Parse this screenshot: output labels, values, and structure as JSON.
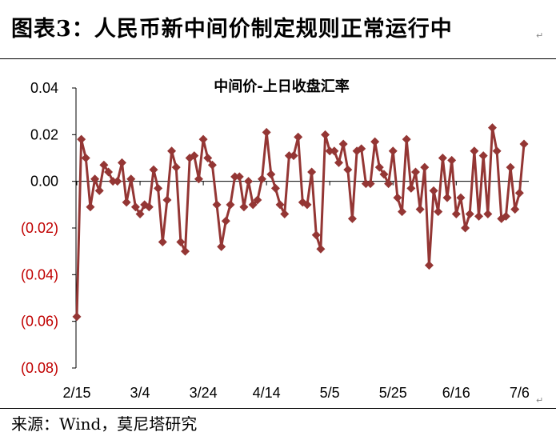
{
  "figure": {
    "title": "图表3：人民币新中间价制定规则正常运行中",
    "source": "来源：Wind，莫尼塔研究"
  },
  "colors": {
    "series": "#943634",
    "negative_label": "#c00000",
    "axis": "#000000",
    "rule": "#000000"
  },
  "chart_data": {
    "type": "line",
    "title": "中间价-上日收盘汇率",
    "xlabel": "",
    "ylabel": "",
    "ylim": [
      -0.08,
      0.04
    ],
    "yticks": [
      {
        "value": 0.04,
        "label": "0.04",
        "negative": false
      },
      {
        "value": 0.02,
        "label": "0.02",
        "negative": false
      },
      {
        "value": 0.0,
        "label": "0.00",
        "negative": false
      },
      {
        "value": -0.02,
        "label": "(0.02)",
        "negative": true
      },
      {
        "value": -0.04,
        "label": "(0.04)",
        "negative": true
      },
      {
        "value": -0.06,
        "label": "(0.06)",
        "negative": true
      },
      {
        "value": -0.08,
        "label": "(0.08)",
        "negative": true
      }
    ],
    "xticks": [
      {
        "index": 0,
        "label": "2/15"
      },
      {
        "index": 14,
        "label": "3/4"
      },
      {
        "index": 28,
        "label": "3/24"
      },
      {
        "index": 42,
        "label": "4/14"
      },
      {
        "index": 56,
        "label": "5/5"
      },
      {
        "index": 70,
        "label": "5/25"
      },
      {
        "index": 84,
        "label": "6/16"
      },
      {
        "index": 98,
        "label": "7/6"
      }
    ],
    "grid": false,
    "legend": "none",
    "series": [
      {
        "values": [
          -0.058,
          0.018,
          0.01,
          -0.011,
          0.001,
          -0.004,
          0.007,
          0.004,
          0.0,
          0.0,
          0.008,
          -0.009,
          0.001,
          -0.011,
          -0.014,
          -0.01,
          -0.011,
          0.005,
          -0.003,
          -0.026,
          -0.008,
          0.013,
          0.006,
          -0.026,
          -0.03,
          0.01,
          0.011,
          0.001,
          0.018,
          0.01,
          0.007,
          -0.01,
          -0.028,
          -0.017,
          -0.01,
          0.002,
          0.002,
          -0.011,
          0.0,
          -0.01,
          -0.008,
          0.001,
          0.021,
          0.003,
          -0.003,
          -0.01,
          -0.014,
          0.011,
          0.011,
          0.019,
          -0.009,
          -0.01,
          0.004,
          -0.023,
          -0.029,
          0.02,
          0.013,
          0.013,
          0.008,
          0.016,
          0.005,
          -0.016,
          0.013,
          0.014,
          -0.001,
          -0.001,
          0.017,
          0.006,
          0.003,
          -0.001,
          0.013,
          -0.007,
          -0.013,
          0.018,
          -0.003,
          0.004,
          -0.012,
          0.006,
          -0.036,
          -0.004,
          -0.013,
          0.01,
          -0.007,
          0.009,
          -0.014,
          -0.007,
          -0.02,
          -0.014,
          0.013,
          -0.015,
          0.011,
          -0.014,
          0.023,
          0.013,
          -0.016,
          -0.015,
          0.006,
          -0.012,
          -0.005,
          0.016
        ]
      }
    ]
  }
}
